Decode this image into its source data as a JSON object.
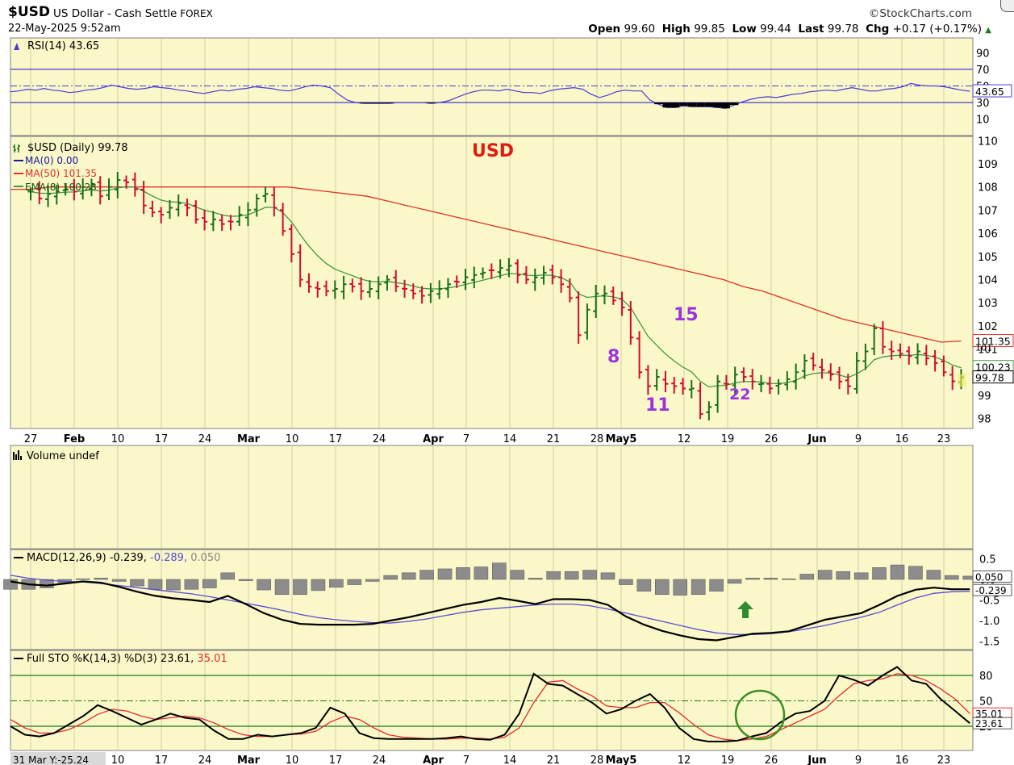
{
  "header": {
    "symbol": "$USD",
    "description": "US Dollar - Cash Settle",
    "exchange": "FOREX",
    "datetime": "22-May-2025 9:52am",
    "brand": "©StockCharts.com",
    "open_label": "Open",
    "open": "99.60",
    "high_label": "High",
    "high": "99.85",
    "low_label": "Low",
    "low": "99.44",
    "last_label": "Last",
    "last": "99.78",
    "chg_label": "Chg",
    "chg": "+0.17 (+0.17%)"
  },
  "annotations": {
    "title": "USD",
    "label_8": "8",
    "label_11": "11",
    "label_15": "15",
    "label_22": "22"
  },
  "colors": {
    "panel_bg": "#faf7c8",
    "up": "#1a6e1a",
    "down": "#d40b2f",
    "ma50": "#e0302a",
    "ema8": "#3f9a3f",
    "rsi": "#4b3bd6",
    "macd": "#000000",
    "signal": "#5a4bd8",
    "hist": "#8c8c8c",
    "stoK": "#000000",
    "stoD": "#e82a2a",
    "annotation_purple": "#9b33e0",
    "annotation_red": "#e31b0e",
    "arrow": "#2e8b2e",
    "circle": "#3c8f1f"
  },
  "chart_data": [
    {
      "type": "line",
      "panel": "rsi",
      "legend": "RSI(14) 43.65",
      "value_label": "43.65",
      "ylim": [
        0,
        100
      ],
      "y_ticks": [
        "90",
        "70",
        "50",
        "30",
        "10"
      ],
      "y_tick_values": [
        90,
        70,
        50,
        30,
        10
      ],
      "levels": [
        70,
        50,
        30
      ],
      "values": [
        43,
        44,
        46,
        45,
        47,
        45,
        44,
        42,
        43,
        45,
        46,
        48,
        51,
        49,
        47,
        46,
        47,
        49,
        48,
        47,
        45,
        44,
        42,
        41,
        43,
        45,
        44,
        46,
        47,
        49,
        48,
        47,
        45,
        44,
        46,
        49,
        51,
        50,
        48,
        40,
        33,
        30,
        29,
        29,
        29,
        29,
        30,
        30,
        30,
        30,
        29,
        30,
        32,
        36,
        40,
        43,
        45,
        45,
        44,
        46,
        44,
        42,
        42,
        41,
        44,
        46,
        47,
        48,
        46,
        40,
        36,
        39,
        43,
        45,
        44,
        44,
        33,
        28,
        24,
        24,
        26,
        25,
        25,
        25,
        24,
        23,
        27,
        31,
        34,
        36,
        37,
        36,
        38,
        40,
        41,
        43,
        44,
        45,
        44,
        46,
        48,
        46,
        44,
        44,
        46,
        47,
        49,
        53,
        51,
        50,
        50,
        49,
        47,
        45,
        43.65
      ]
    },
    {
      "type": "ohlc",
      "panel": "price",
      "legend": "$USD (Daily) 99.78",
      "ylim": [
        98,
        110
      ],
      "y_ticks": [
        "110",
        "109",
        "108",
        "107",
        "106",
        "105",
        "104",
        "103",
        "102",
        "101",
        "100",
        "99",
        "98"
      ],
      "y_tick_values": [
        110,
        109,
        108,
        107,
        106,
        105,
        104,
        103,
        102,
        101,
        100,
        99,
        98
      ],
      "x_labels": [
        "27",
        "Feb",
        "10",
        "17",
        "24",
        "Mar",
        "10",
        "17",
        "24",
        "Apr",
        "7",
        "14",
        "21",
        "28",
        "May5",
        "12",
        "19",
        "26",
        "Jun",
        "9",
        "16",
        "23"
      ],
      "closes": [
        107.8,
        107.5,
        107.7,
        107.8,
        107.9,
        107.8,
        108.0,
        108.1,
        107.6,
        108.0,
        108.3,
        108.2,
        107.9,
        107.2,
        106.9,
        106.8,
        107.1,
        107.3,
        107.1,
        106.6,
        106.5,
        106.6,
        106.4,
        106.5,
        106.8,
        107.0,
        107.5,
        107.7,
        107.1,
        106.1,
        105.1,
        104.0,
        103.7,
        103.6,
        103.5,
        103.6,
        103.8,
        103.7,
        103.5,
        103.6,
        103.8,
        104.0,
        103.7,
        103.6,
        103.4,
        103.3,
        103.5,
        103.6,
        103.8,
        103.9,
        104.1,
        104.2,
        104.3,
        104.4,
        104.5,
        104.6,
        104.2,
        104.0,
        104.1,
        104.3,
        104.1,
        103.8,
        103.2,
        101.6,
        102.7,
        103.4,
        103.4,
        103.1,
        102.8,
        101.5,
        100.0,
        99.4,
        99.8,
        99.5,
        99.4,
        99.3,
        99.3,
        98.2,
        98.5,
        99.6,
        99.5,
        99.9,
        99.8,
        99.6,
        99.5,
        99.3,
        99.5,
        99.7,
        100.0,
        100.5,
        100.3,
        100.1,
        99.9,
        99.6,
        99.4,
        100.5,
        100.9,
        101.9,
        101.1,
        100.9,
        100.8,
        100.7,
        100.9,
        100.6,
        100.4,
        100.0,
        99.61,
        99.78
      ],
      "ma50_label": "MA(50) 101.35",
      "ma50_value": "101.35",
      "ma50": [
        107.9,
        107.9,
        108.0,
        108.0,
        108.0,
        108.0,
        108.0,
        108.0,
        108.0,
        108.0,
        108.0,
        108.0,
        108.0,
        108.0,
        108.0,
        107.9,
        107.8,
        107.7,
        107.6,
        107.4,
        107.2,
        107.0,
        106.8,
        106.6,
        106.4,
        106.2,
        106.0,
        105.8,
        105.6,
        105.4,
        105.2,
        105.0,
        104.8,
        104.6,
        104.4,
        104.2,
        104.0,
        103.7,
        103.5,
        103.2,
        102.9,
        102.6,
        102.3,
        102.1,
        101.9,
        101.7,
        101.5,
        101.3,
        101.35
      ],
      "ma0_label": "MA(0) 0.00",
      "ema8_label": "EMA(8) 100.23",
      "ema8_value": "100.23",
      "last_value": "99.78",
      "annotation_value_labels": [
        "101",
        "100.23"
      ]
    },
    {
      "type": "bar",
      "panel": "volume",
      "legend": "Volume undef",
      "values": []
    },
    {
      "type": "line",
      "panel": "macd",
      "legend_name": "MACD(12,26,9)",
      "legend_macd": "-0.239",
      "legend_signal": "-0.289",
      "legend_hist": "0.050",
      "ylim": [
        -1.7,
        0.7
      ],
      "y_ticks": [
        "0.5",
        "0.0",
        "-0.5",
        "-1.0",
        "-1.5"
      ],
      "y_tick_values": [
        0.5,
        0.0,
        -0.5,
        -1.0,
        -1.5
      ],
      "macd": [
        -0.05,
        -0.12,
        -0.15,
        -0.1,
        -0.05,
        -0.08,
        -0.18,
        -0.3,
        -0.4,
        -0.46,
        -0.5,
        -0.55,
        -0.4,
        -0.6,
        -0.82,
        -0.98,
        -1.08,
        -1.1,
        -1.1,
        -1.1,
        -1.08,
        -1.0,
        -0.92,
        -0.82,
        -0.72,
        -0.62,
        -0.55,
        -0.45,
        -0.52,
        -0.6,
        -0.48,
        -0.48,
        -0.5,
        -0.62,
        -0.9,
        -1.1,
        -1.25,
        -1.36,
        -1.45,
        -1.48,
        -1.4,
        -1.32,
        -1.3,
        -1.26,
        -1.12,
        -0.98,
        -0.9,
        -0.82,
        -0.62,
        -0.4,
        -0.25,
        -0.2,
        -0.24,
        -0.239
      ],
      "signal": [
        0.1,
        0.03,
        -0.02,
        -0.05,
        -0.06,
        -0.1,
        -0.15,
        -0.2,
        -0.25,
        -0.3,
        -0.35,
        -0.42,
        -0.5,
        -0.58,
        -0.66,
        -0.75,
        -0.85,
        -0.93,
        -0.98,
        -1.02,
        -1.05,
        -1.06,
        -1.02,
        -0.96,
        -0.88,
        -0.8,
        -0.74,
        -0.7,
        -0.66,
        -0.62,
        -0.6,
        -0.6,
        -0.64,
        -0.72,
        -0.82,
        -0.92,
        -1.02,
        -1.12,
        -1.22,
        -1.3,
        -1.34,
        -1.34,
        -1.32,
        -1.27,
        -1.2,
        -1.12,
        -1.02,
        -0.92,
        -0.8,
        -0.62,
        -0.45,
        -0.34,
        -0.3,
        -0.289
      ]
    },
    {
      "type": "line",
      "panel": "stochastic",
      "legend_name": "Full STO %K(14,3) %D(3)",
      "legend_k": "23.61",
      "legend_d": "35.01",
      "ylim": [
        0,
        100
      ],
      "y_ticks": [
        "80",
        "50",
        "20"
      ],
      "y_tick_values": [
        80,
        50,
        20
      ],
      "levels": [
        80,
        50,
        20
      ],
      "k": [
        20,
        10,
        8,
        12,
        22,
        32,
        45,
        38,
        30,
        22,
        28,
        35,
        30,
        28,
        15,
        5,
        5,
        10,
        8,
        10,
        12,
        18,
        42,
        35,
        12,
        6,
        5,
        5,
        5,
        5,
        6,
        8,
        5,
        4,
        10,
        35,
        82,
        70,
        68,
        58,
        48,
        35,
        40,
        50,
        58,
        42,
        18,
        5,
        2,
        2,
        3,
        8,
        12,
        25,
        35,
        38,
        50,
        80,
        75,
        68,
        80,
        90,
        74,
        70,
        52,
        38,
        23.61
      ],
      "d": [
        28,
        18,
        12,
        12,
        16,
        24,
        34,
        40,
        38,
        32,
        28,
        30,
        32,
        30,
        24,
        16,
        10,
        8,
        8,
        10,
        11,
        14,
        25,
        32,
        28,
        18,
        10,
        7,
        6,
        5,
        5,
        6,
        6,
        5,
        7,
        18,
        48,
        72,
        74,
        64,
        56,
        44,
        42,
        42,
        48,
        48,
        36,
        22,
        10,
        5,
        3,
        5,
        8,
        16,
        24,
        32,
        40,
        56,
        70,
        74,
        76,
        82,
        80,
        74,
        64,
        52,
        35.01
      ],
      "value_label_k": "23.61",
      "value_label_d": "35.01"
    }
  ],
  "xaxis_bottom": [
    "31 Mar Y:-25.24",
    "10",
    "17",
    "24",
    "Mar",
    "10",
    "17",
    "24",
    "Apr",
    "7",
    "14",
    "21",
    "28",
    "May5",
    "12",
    "19",
    "26",
    "Jun",
    "9",
    "16",
    "23"
  ]
}
